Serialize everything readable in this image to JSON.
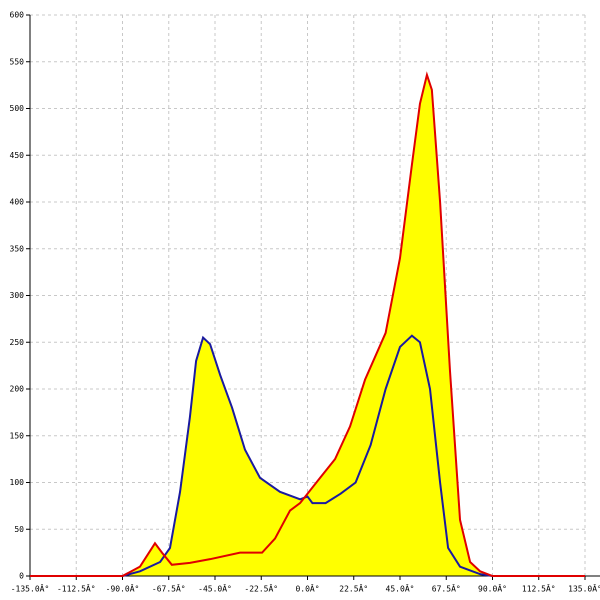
{
  "chart_data": {
    "type": "area",
    "xlim": [
      -135,
      135
    ],
    "ylim": [
      0,
      600
    ],
    "xticks": [
      {
        "value": -135,
        "label": "-135.0Â°"
      },
      {
        "value": -112.5,
        "label": "-112.5Â°"
      },
      {
        "value": -90,
        "label": "-90.0Â°"
      },
      {
        "value": -67.5,
        "label": "-67.5Â°"
      },
      {
        "value": -45,
        "label": "-45.0Â°"
      },
      {
        "value": -22.5,
        "label": "-22.5Â°"
      },
      {
        "value": 0,
        "label": "0.0Â°"
      },
      {
        "value": 22.5,
        "label": "22.5Â°"
      },
      {
        "value": 45,
        "label": "45.0Â°"
      },
      {
        "value": 67.5,
        "label": "67.5Â°"
      },
      {
        "value": 90,
        "label": "90.0Â°"
      },
      {
        "value": 112.5,
        "label": "112.5Â°"
      },
      {
        "value": 135,
        "label": "135.0Â°"
      }
    ],
    "yticks": [
      0,
      50,
      100,
      150,
      200,
      250,
      300,
      350,
      400,
      450,
      500,
      550,
      600
    ],
    "grid": true,
    "fill_color": "#ffff00",
    "series": [
      {
        "color": "#1a1aa0",
        "x": [
          -90,
          -81.5,
          -71.7,
          -66.9,
          -62,
          -57.2,
          -54.2,
          -50.8,
          -47.4,
          -42.5,
          -36.7,
          -30.4,
          -23.1,
          -13.4,
          -3.6,
          0,
          2.4,
          8.8,
          16.1,
          23.4,
          30.7,
          38,
          45,
          50.8,
          54.7,
          59.6,
          64.5,
          68.4,
          74.2,
          84,
          90
        ],
        "values": [
          0,
          5,
          15,
          30,
          90,
          170,
          230,
          255,
          248,
          215,
          180,
          135,
          105,
          90,
          82,
          85,
          78,
          78,
          88,
          100,
          140,
          200,
          245,
          257,
          250,
          200,
          100,
          30,
          10,
          2,
          0
        ]
      },
      {
        "color": "#e00000",
        "x": [
          -135,
          -90,
          -81.5,
          -74.2,
          -70.8,
          -66,
          -57.2,
          -47.4,
          -32.8,
          -22.1,
          -15.8,
          -8.5,
          -3.6,
          6.1,
          13.4,
          20.7,
          28,
          38,
          45,
          50.8,
          54.7,
          58.1,
          60.5,
          64.5,
          69.3,
          74.2,
          79.1,
          84,
          90,
          135
        ],
        "values": [
          0,
          0,
          10,
          35,
          25,
          12,
          14,
          18,
          25,
          25,
          40,
          70,
          78,
          105,
          125,
          160,
          210,
          260,
          340,
          440,
          505,
          536,
          520,
          400,
          220,
          60,
          15,
          5,
          0,
          0
        ]
      }
    ]
  }
}
